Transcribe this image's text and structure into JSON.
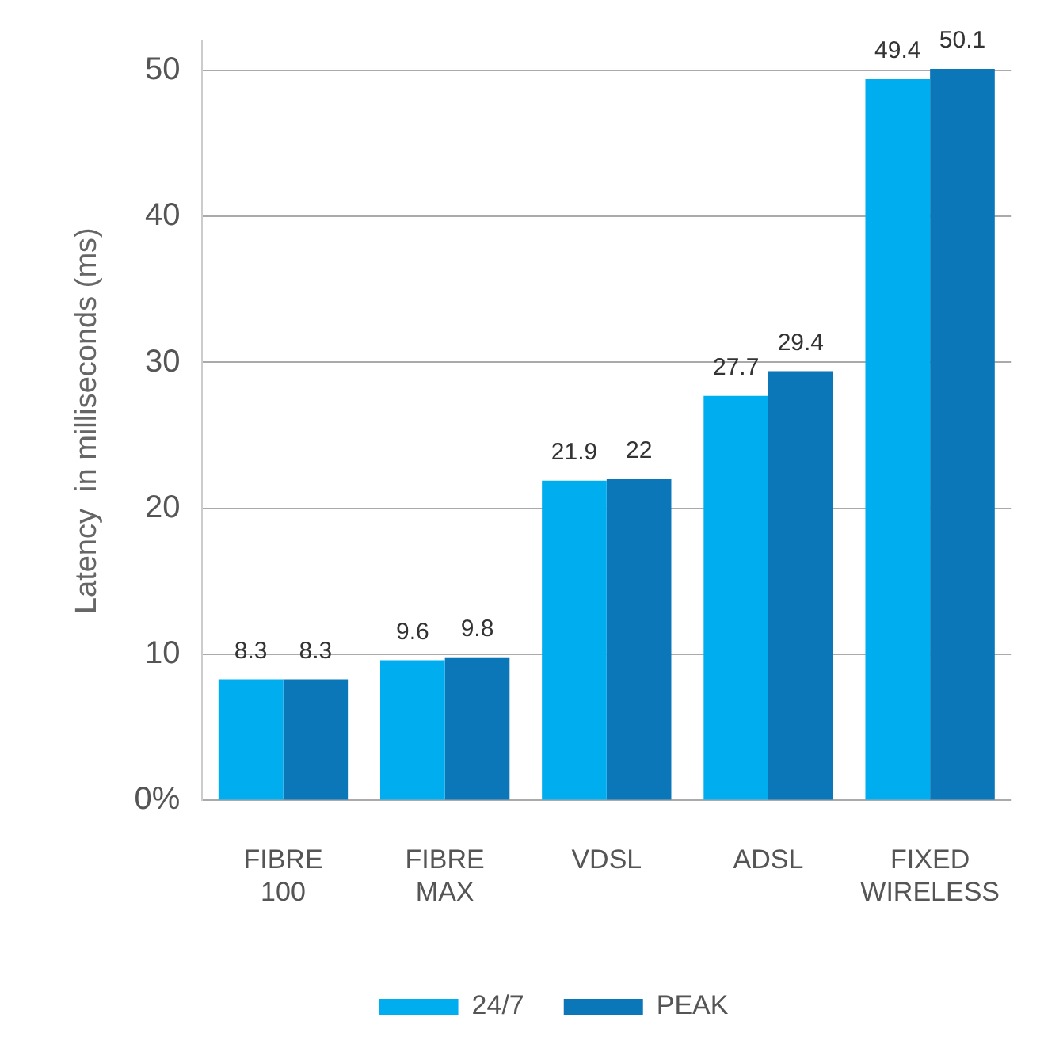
{
  "chart_data": {
    "type": "bar",
    "ylabel": "Latency  in milliseconds (ms)",
    "categories": [
      "FIBRE 100",
      "FIBRE MAX",
      "VDSL",
      "ADSL",
      "FIXED WIRELESS"
    ],
    "series": [
      {
        "name": "24/7",
        "color": "#00aeef",
        "values": [
          8.3,
          9.6,
          21.9,
          27.7,
          49.4
        ]
      },
      {
        "name": "PEAK",
        "color": "#0b77b8",
        "values": [
          8.3,
          9.8,
          22,
          29.4,
          50.1
        ]
      }
    ],
    "ylim": [
      0,
      52
    ],
    "yticks": [
      {
        "value": 0,
        "label": "0%"
      },
      10,
      20,
      30,
      40,
      50
    ],
    "grid": "y",
    "legend": "bottom",
    "data_labels": true
  }
}
